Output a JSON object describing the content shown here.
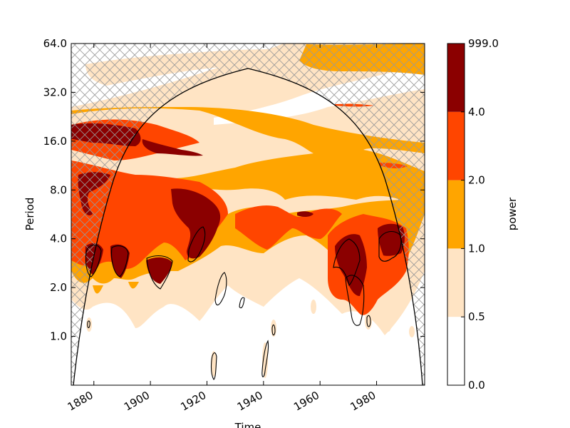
{
  "colors": {
    "level_0": "#ffffff",
    "level_1": "#ffe4c4",
    "level_2": "#ffa500",
    "level_3": "#ff4500",
    "level_4": "#8b0000",
    "outline": "#000000",
    "hatch": "#999999"
  },
  "chart_data": {
    "type": "heatmap",
    "title": "",
    "xlabel": "Time",
    "ylabel": "Period",
    "colorbar_label": "power",
    "x_range": [
      1872,
      1997
    ],
    "x_ticks": [
      "1880",
      "1900",
      "1920",
      "1940",
      "1960",
      "1980"
    ],
    "y_scale": "log2",
    "y_range": [
      0.5,
      64
    ],
    "y_ticks": [
      "1.0",
      "2.0",
      "4.0",
      "8.0",
      "16.0",
      "32.0",
      "64.0"
    ],
    "levels": [
      0.0,
      0.5,
      1.0,
      2.0,
      4.0,
      999.0
    ],
    "level_labels": [
      "0.0",
      "0.5",
      "1.0",
      "2.0",
      "4.0",
      "999.0"
    ],
    "cone_of_influence": {
      "description": "hatched region outside cone",
      "peak_year": 1934,
      "peak_period": 45
    },
    "significance_contours": [
      {
        "x": [
          1877,
          1882
        ],
        "y": [
          2.5,
          4.0
        ]
      },
      {
        "x": [
          1887,
          1891
        ],
        "y": [
          2.5,
          3.8
        ]
      },
      {
        "x": [
          1902,
          1910
        ],
        "y": [
          2.1,
          3.5
        ]
      },
      {
        "x": [
          1913,
          1918
        ],
        "y": [
          3.0,
          5.0
        ]
      },
      {
        "x": [
          1923,
          1926
        ],
        "y": [
          1.6,
          2.6
        ]
      },
      {
        "x": [
          1933,
          1935
        ],
        "y": [
          1.6,
          1.8
        ]
      },
      {
        "x": [
          1965,
          1972
        ],
        "y": [
          1.7,
          3.8
        ]
      },
      {
        "x": [
          1970,
          1975
        ],
        "y": [
          1.3,
          2.6
        ]
      },
      {
        "x": [
          1978,
          1979
        ],
        "y": [
          1.2,
          1.3
        ]
      },
      {
        "x": [
          1982,
          1988
        ],
        "y": [
          3.0,
          4.5
        ]
      },
      {
        "x": [
          1875,
          1876
        ],
        "y": [
          1.2,
          1.3
        ]
      },
      {
        "x": [
          1920,
          1922
        ],
        "y": [
          0.6,
          0.8
        ]
      },
      {
        "x": [
          1937,
          1939
        ],
        "y": [
          0.6,
          0.9
        ]
      },
      {
        "x": [
          1943,
          1944
        ],
        "y": [
          1.0,
          1.2
        ]
      }
    ],
    "regions": [
      {
        "level": 1,
        "x": [
          1872,
          1997
        ],
        "y": [
          0.55,
          3.0
        ],
        "note": "scattered low-power blobs"
      },
      {
        "level": 2,
        "x": [
          1872,
          1997
        ],
        "y": [
          2.5,
          20
        ]
      },
      {
        "level": 3,
        "x": [
          1872,
          1930
        ],
        "y": [
          3.0,
          25
        ]
      },
      {
        "level": 4,
        "x": [
          1876,
          1885
        ],
        "y": [
          2.8,
          4.0
        ]
      },
      {
        "level": 4,
        "x": [
          1886,
          1891
        ],
        "y": [
          2.6,
          3.8
        ]
      },
      {
        "level": 4,
        "x": [
          1902,
          1911
        ],
        "y": [
          2.3,
          3.3
        ]
      },
      {
        "level": 4,
        "x": [
          1910,
          1923
        ],
        "y": [
          3.5,
          8.0
        ]
      },
      {
        "level": 4,
        "x": [
          1872,
          1885
        ],
        "y": [
          7.0,
          9.0
        ]
      },
      {
        "level": 4,
        "x": [
          1899,
          1918
        ],
        "y": [
          14,
          19
        ]
      },
      {
        "level": 4,
        "x": [
          1965,
          1974
        ],
        "y": [
          2.0,
          5.0
        ]
      },
      {
        "level": 4,
        "x": [
          1982,
          1990
        ],
        "y": [
          3.2,
          5.2
        ]
      },
      {
        "level": 2,
        "x": [
          1935,
          1997
        ],
        "y": [
          40,
          64
        ]
      },
      {
        "level": 3,
        "x": [
          1968,
          1975
        ],
        "y": [
          27,
          28
        ]
      },
      {
        "level": 3,
        "x": [
          1985,
          1990
        ],
        "y": [
          12,
          13
        ]
      },
      {
        "level": 3,
        "x": [
          1953,
          1958
        ],
        "y": [
          5.8,
          6.3
        ]
      }
    ]
  }
}
